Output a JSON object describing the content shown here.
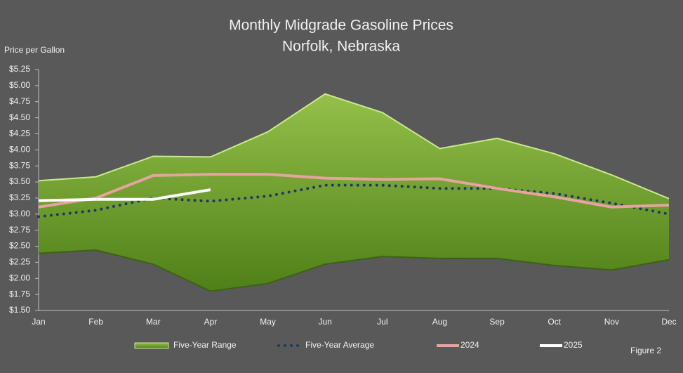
{
  "chart_data": {
    "type": "line",
    "title": "Monthly Midgrade Gasoline Prices",
    "subtitle": "Norfolk, Nebraska",
    "y_label": "Price per Gallon",
    "note": "Figure 2",
    "categories": [
      "Jan",
      "Feb",
      "Mar",
      "Apr",
      "May",
      "Jun",
      "Jul",
      "Aug",
      "Sep",
      "Oct",
      "Nov",
      "Dec"
    ],
    "ylim": [
      1.5,
      5.25
    ],
    "yticks": [
      {
        "value": 1.5,
        "label": "$1.50"
      },
      {
        "value": 1.75,
        "label": "$1.75"
      },
      {
        "value": 2,
        "label": "$2.00"
      },
      {
        "value": 2.25,
        "label": "$2.25"
      },
      {
        "value": 2.5,
        "label": "$2.50"
      },
      {
        "value": 2.75,
        "label": "$2.75"
      },
      {
        "value": 3,
        "label": "$3.00"
      },
      {
        "value": 3.25,
        "label": "$3.25"
      },
      {
        "value": 3.5,
        "label": "$3.50"
      },
      {
        "value": 3.75,
        "label": "$3.75"
      },
      {
        "value": 4,
        "label": "$4.00"
      },
      {
        "value": 4.25,
        "label": "$4.25"
      },
      {
        "value": 4.5,
        "label": "$4.50"
      },
      {
        "value": 4.75,
        "label": "$4.75"
      },
      {
        "value": 5,
        "label": "$5.00"
      },
      {
        "value": 5.25,
        "label": "$5.25"
      }
    ],
    "series": [
      {
        "name": "Five-Year Range",
        "style": "range",
        "color": "#7aa534",
        "high": [
          3.52,
          3.58,
          3.9,
          3.89,
          4.28,
          4.87,
          4.58,
          4.02,
          4.18,
          3.94,
          3.61,
          3.24
        ],
        "low": [
          2.39,
          2.44,
          2.22,
          1.8,
          1.92,
          2.22,
          2.34,
          2.31,
          2.31,
          2.2,
          2.13,
          2.29
        ]
      },
      {
        "name": "Five-Year Average",
        "style": "dotted",
        "color": "#1f3864",
        "values": [
          2.96,
          3.06,
          3.25,
          3.2,
          3.28,
          3.45,
          3.45,
          3.4,
          3.4,
          3.32,
          3.17,
          3.0
        ]
      },
      {
        "name": "2024",
        "style": "solid",
        "color": "#e6a3a0",
        "values": [
          3.11,
          3.25,
          3.6,
          3.62,
          3.62,
          3.56,
          3.54,
          3.55,
          3.4,
          3.27,
          3.11,
          3.14
        ]
      },
      {
        "name": "2025",
        "style": "solid",
        "color": "#ffffff",
        "values": [
          3.21,
          3.23,
          3.23,
          3.38,
          null,
          null,
          null,
          null,
          null,
          null,
          null,
          null
        ]
      }
    ]
  }
}
